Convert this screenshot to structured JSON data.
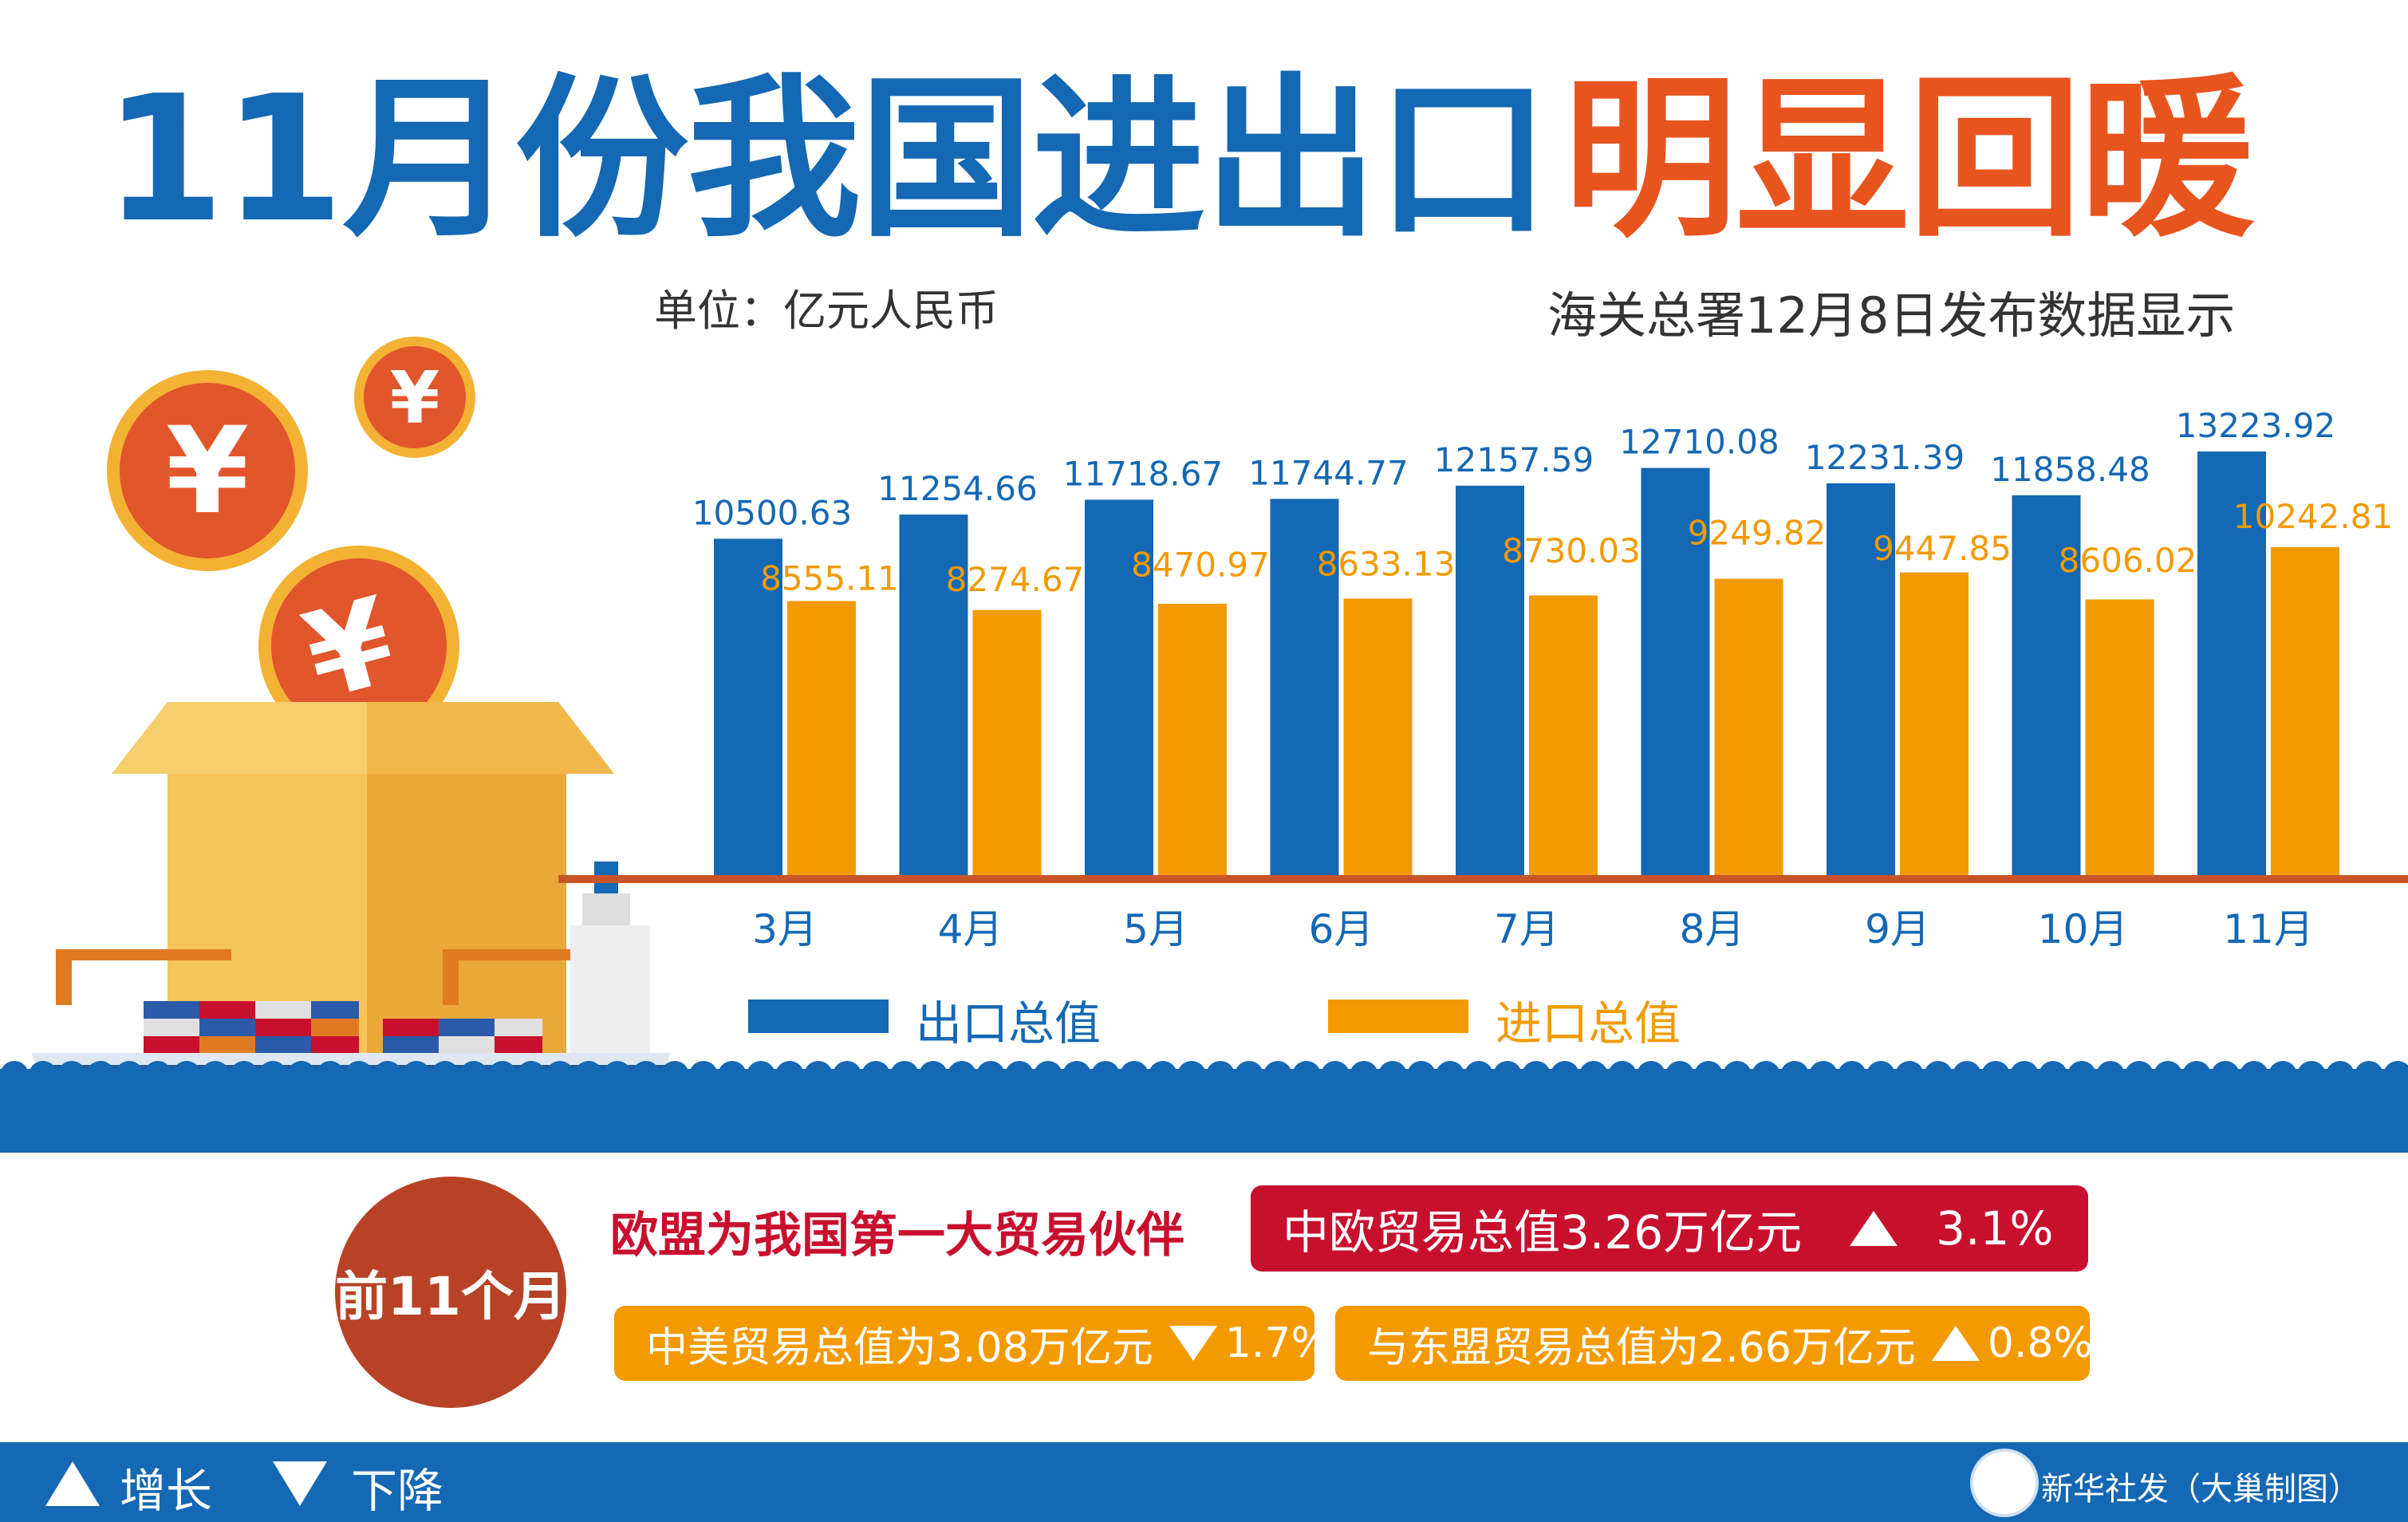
{
  "title": {
    "part1": "11月份我国进出口",
    "part2": "明显回暖"
  },
  "unit": "单位：亿元人民币",
  "source": "海关总署12月8日发布数据显示",
  "colors": {
    "blue": "#1468b4",
    "orange": "#f39a00",
    "red": "#c8102e",
    "brown_red": "#b84226"
  },
  "chart_data": {
    "type": "bar",
    "categories": [
      "3月",
      "4月",
      "5月",
      "6月",
      "7月",
      "8月",
      "9月",
      "10月",
      "11月"
    ],
    "series": [
      {
        "name": "出口总值",
        "color": "#1468b4",
        "values": [
          10500.63,
          11254.66,
          11718.67,
          11744.77,
          12157.59,
          12710.08,
          12231.39,
          11858.48,
          13223.92
        ]
      },
      {
        "name": "进口总值",
        "color": "#f39a00",
        "values": [
          8555.11,
          8274.67,
          8470.97,
          8633.13,
          8730.03,
          9249.82,
          9447.85,
          8606.02,
          10242.81
        ]
      }
    ],
    "value_labels": {
      "export": [
        "10500.63",
        "11254.66",
        "11718.67",
        "11744.77",
        "12157.59",
        "12710.08",
        "12231.39",
        "11858.48",
        "13223.92"
      ],
      "import": [
        "8555.11",
        "8274.67",
        "8470.97",
        "8633.13",
        "8730.03",
        "9249.82",
        "9447.85",
        "8606.02",
        "10242.81"
      ]
    },
    "legend_position": "bottom",
    "grid": false
  },
  "summary": {
    "badge": "前11个月",
    "eu_headline": "欧盟为我国第一大贸易伙伴",
    "eu": {
      "label": "中欧贸易总值3.26万亿元",
      "trend": "up",
      "change": "3.1%"
    },
    "us": {
      "label": "中美贸易总值为3.08万亿元",
      "trend": "down",
      "change": "1.7%"
    },
    "asean": {
      "label": "与东盟贸易总值为2.66万亿元",
      "trend": "up",
      "change": "0.8%"
    }
  },
  "footer": {
    "up_label": "增长",
    "down_label": "下降",
    "credit": "新华社发（大巢制图）"
  },
  "icons": [
    "yuan-coin-icon",
    "cargo-ship-icon",
    "cardboard-box-icon",
    "up-triangle-icon",
    "down-triangle-icon",
    "xinhua-logo-icon"
  ]
}
